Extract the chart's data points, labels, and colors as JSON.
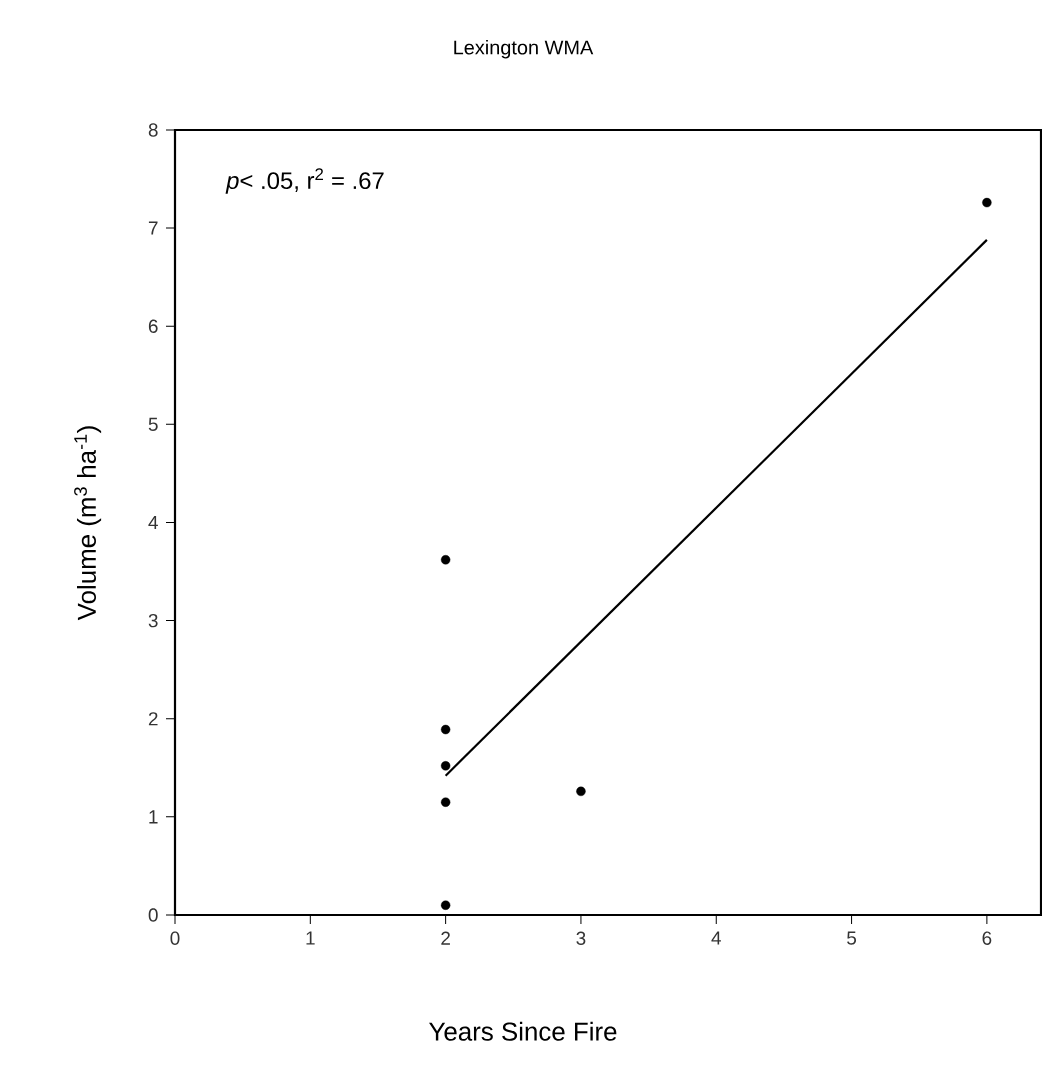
{
  "chart_data": {
    "type": "scatter",
    "title": "Lexington WMA",
    "xlabel": "Years Since Fire",
    "ylabel": "Volume (m$^{3}$ ha$^{-1}$)",
    "annotations": [
      "*p*< .05, r$^{2}$ = .67"
    ],
    "xlim": [
      0,
      6.4
    ],
    "ylim": [
      0,
      8
    ],
    "xticks": [
      0,
      1,
      2,
      3,
      4,
      5,
      6
    ],
    "yticks": [
      0,
      1,
      2,
      3,
      4,
      5,
      6,
      7,
      8
    ],
    "grid": false,
    "series": [
      {
        "marker": "circle",
        "color": "#000000",
        "x": [
          2,
          2,
          2,
          2,
          2,
          3,
          6
        ],
        "values": [
          3.62,
          1.89,
          1.52,
          1.15,
          0.1,
          1.26,
          7.26
        ]
      },
      {
        "type": "line",
        "marker": "none",
        "color": "#000000",
        "x": [
          2,
          6
        ],
        "values": [
          1.42,
          6.88
        ]
      }
    ]
  }
}
